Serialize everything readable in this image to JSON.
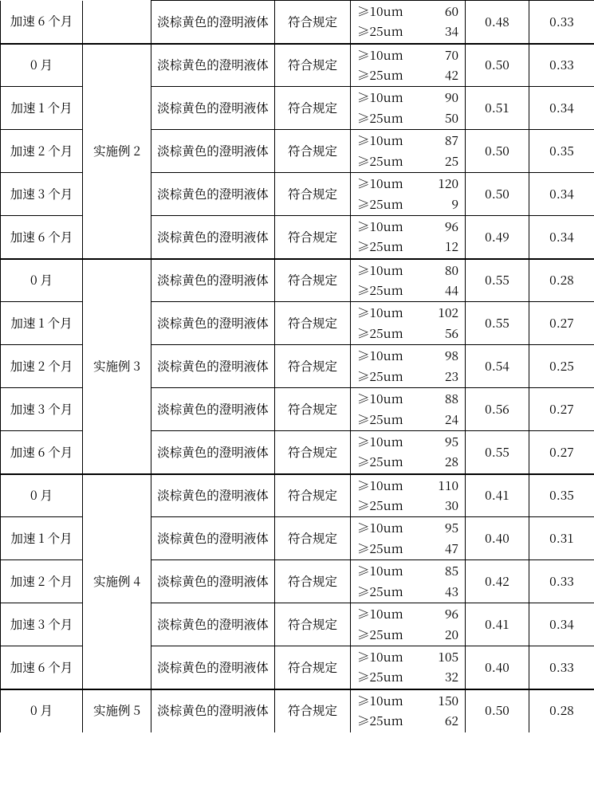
{
  "columns": {
    "col1_width": 103,
    "col2_width": 86,
    "col3_width": 155,
    "col4_width": 95,
    "col5_width": 144,
    "col6_width": 80,
    "col7_width": 82
  },
  "labels": {
    "m0": "0 月",
    "m1": "加速 1 个月",
    "m2": "加速 2 个月",
    "m3": "加速 3 个月",
    "m6": "加速 6 个月",
    "ex2": "实施例 2",
    "ex3": "实施例 3",
    "ex4": "实施例 4",
    "ex5": "实施例 5",
    "appearance": "淡棕黄色的澄明液体",
    "compliant": "符合规定",
    "ge10": "≥10um",
    "ge25": "≥25um"
  },
  "groups": [
    {
      "group_key": "orphan",
      "example_label": "",
      "thick_top": false,
      "rows": [
        {
          "time_key": "m6",
          "p10": "60",
          "p25": "34",
          "c6": "0.48",
          "c7": "0.33",
          "no_top_group": true,
          "no_top_col1": true
        }
      ]
    },
    {
      "group_key": "ex2",
      "example_label": "ex2",
      "thick_top": true,
      "rows": [
        {
          "time_key": "m0",
          "p10": "70",
          "p25": "42",
          "c6": "0.50",
          "c7": "0.33"
        },
        {
          "time_key": "m1",
          "p10": "90",
          "p25": "50",
          "c6": "0.51",
          "c7": "0.34"
        },
        {
          "time_key": "m2",
          "p10": "87",
          "p25": "25",
          "c6": "0.50",
          "c7": "0.35"
        },
        {
          "time_key": "m3",
          "p10": "120",
          "p25": "9",
          "c6": "0.50",
          "c7": "0.34"
        },
        {
          "time_key": "m6",
          "p10": "96",
          "p25": "12",
          "c6": "0.49",
          "c7": "0.34"
        }
      ]
    },
    {
      "group_key": "ex3",
      "example_label": "ex3",
      "thick_top": true,
      "rows": [
        {
          "time_key": "m0",
          "p10": "80",
          "p25": "44",
          "c6": "0.55",
          "c7": "0.28"
        },
        {
          "time_key": "m1",
          "p10": "102",
          "p25": "56",
          "c6": "0.55",
          "c7": "0.27"
        },
        {
          "time_key": "m2",
          "p10": "98",
          "p25": "23",
          "c6": "0.54",
          "c7": "0.25"
        },
        {
          "time_key": "m3",
          "p10": "88",
          "p25": "24",
          "c6": "0.56",
          "c7": "0.27"
        },
        {
          "time_key": "m6",
          "p10": "95",
          "p25": "28",
          "c6": "0.55",
          "c7": "0.27"
        }
      ]
    },
    {
      "group_key": "ex4",
      "example_label": "ex4",
      "thick_top": true,
      "rows": [
        {
          "time_key": "m0",
          "p10": "110",
          "p25": "30",
          "c6": "0.41",
          "c7": "0.35"
        },
        {
          "time_key": "m1",
          "p10": "95",
          "p25": "47",
          "c6": "0.40",
          "c7": "0.31"
        },
        {
          "time_key": "m2",
          "p10": "85",
          "p25": "43",
          "c6": "0.42",
          "c7": "0.33"
        },
        {
          "time_key": "m3",
          "p10": "96",
          "p25": "20",
          "c6": "0.41",
          "c7": "0.34"
        },
        {
          "time_key": "m6",
          "p10": "105",
          "p25": "32",
          "c6": "0.40",
          "c7": "0.33"
        }
      ]
    },
    {
      "group_key": "ex5",
      "example_label": "ex5",
      "thick_top": true,
      "open_bottom": true,
      "rows": [
        {
          "time_key": "m0",
          "p10": "150",
          "p25": "62",
          "c6": "0.50",
          "c7": "0.28"
        }
      ]
    }
  ]
}
